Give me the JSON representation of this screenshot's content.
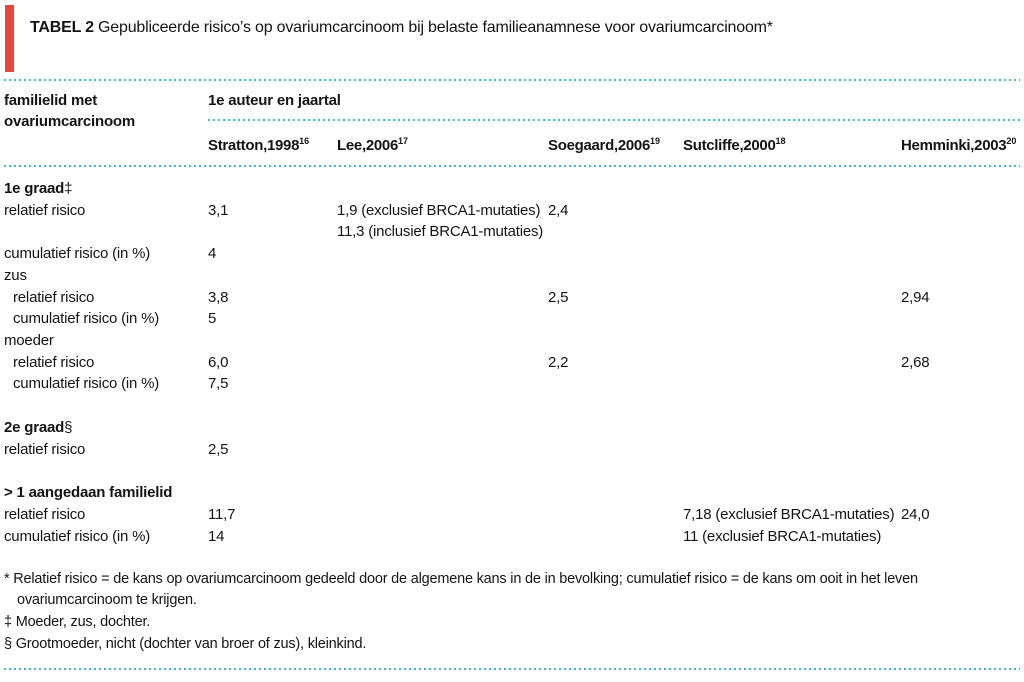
{
  "accent_colors": {
    "red_bar": "#e8463a",
    "dotted_rule_blue": "#41b6cf",
    "text": "#141414"
  },
  "table": {
    "title_label": "TABEL 2",
    "title_text": "Gepubliceerde risico’s op ovariumcarcinoom bij belaste familieanamnese voor ovariumcarcinoom*",
    "row_header": "familielid met ovariumcarcinoom",
    "column_group_header": "1e auteur en jaartal",
    "columns": [
      {
        "name": "Stratton,1998",
        "ref": "16"
      },
      {
        "name": "Lee,2006",
        "ref": "17"
      },
      {
        "name": "Soegaard,2006",
        "ref": "19"
      },
      {
        "name": "Sutcliffe,2000",
        "ref": "18"
      },
      {
        "name": "Hemminki,2003",
        "ref": "20"
      }
    ],
    "rows": [
      {
        "style": "heading",
        "label": "1e graad",
        "marker": "‡"
      },
      {
        "style": "data",
        "indent": false,
        "label": "relatief risico",
        "cells": [
          [
            "3,1"
          ],
          [
            "1,9 (exclusief BRCA1-mutaties)",
            "11,3 (inclusief BRCA1-mutaties)"
          ],
          [
            "2,4"
          ],
          [],
          []
        ]
      },
      {
        "style": "data",
        "indent": false,
        "label": "cumulatief risico (in %)",
        "cells": [
          [
            "4"
          ],
          [],
          [],
          [],
          []
        ]
      },
      {
        "style": "subheading",
        "label": "zus",
        "marker": ""
      },
      {
        "style": "data",
        "indent": true,
        "label": "relatief risico",
        "cells": [
          [
            "3,8"
          ],
          [],
          [
            "2,5"
          ],
          [],
          [
            "2,94"
          ]
        ]
      },
      {
        "style": "data",
        "indent": true,
        "label": "cumulatief risico (in %)",
        "cells": [
          [
            "5"
          ],
          [],
          [],
          [],
          []
        ]
      },
      {
        "style": "subheading",
        "label": "moeder",
        "marker": ""
      },
      {
        "style": "data",
        "indent": true,
        "label": "relatief risico",
        "cells": [
          [
            "6,0"
          ],
          [],
          [
            "2,2"
          ],
          [],
          [
            "2,68"
          ]
        ]
      },
      {
        "style": "data",
        "indent": true,
        "label": "cumulatief risico (in %)",
        "cells": [
          [
            "7,5"
          ],
          [],
          [],
          [],
          []
        ]
      },
      {
        "style": "heading",
        "label": "2e graad",
        "marker": "§",
        "gap": true
      },
      {
        "style": "data",
        "indent": false,
        "label": "relatief risico",
        "cells": [
          [
            "2,5"
          ],
          [],
          [],
          [],
          []
        ]
      },
      {
        "style": "heading",
        "label": "> 1 aangedaan familielid",
        "marker": "",
        "gap": true
      },
      {
        "style": "data",
        "indent": false,
        "label": "relatief risico",
        "cells": [
          [
            "11,7"
          ],
          [],
          [],
          [
            "7,18 (exclusief BRCA1-mutaties)"
          ],
          [
            "24,0"
          ]
        ]
      },
      {
        "style": "data",
        "indent": false,
        "label": "cumulatief risico (in %)",
        "cells": [
          [
            "14"
          ],
          [],
          [],
          [
            "11 (exclusief BRCA1-mutaties)"
          ],
          []
        ]
      }
    ],
    "footnotes": [
      {
        "marker": "*",
        "text": "Relatief risico = de kans op ovariumcarcinoom gedeeld door de algemene kans in de in bevolking; cumulatief risico = de kans om ooit in het leven ovariumcarcinoom te krijgen."
      },
      {
        "marker": "‡",
        "text": "Moeder, zus, dochter."
      },
      {
        "marker": "§",
        "text": "Grootmoeder, nicht (dochter van broer of zus), kleinkind."
      }
    ]
  }
}
